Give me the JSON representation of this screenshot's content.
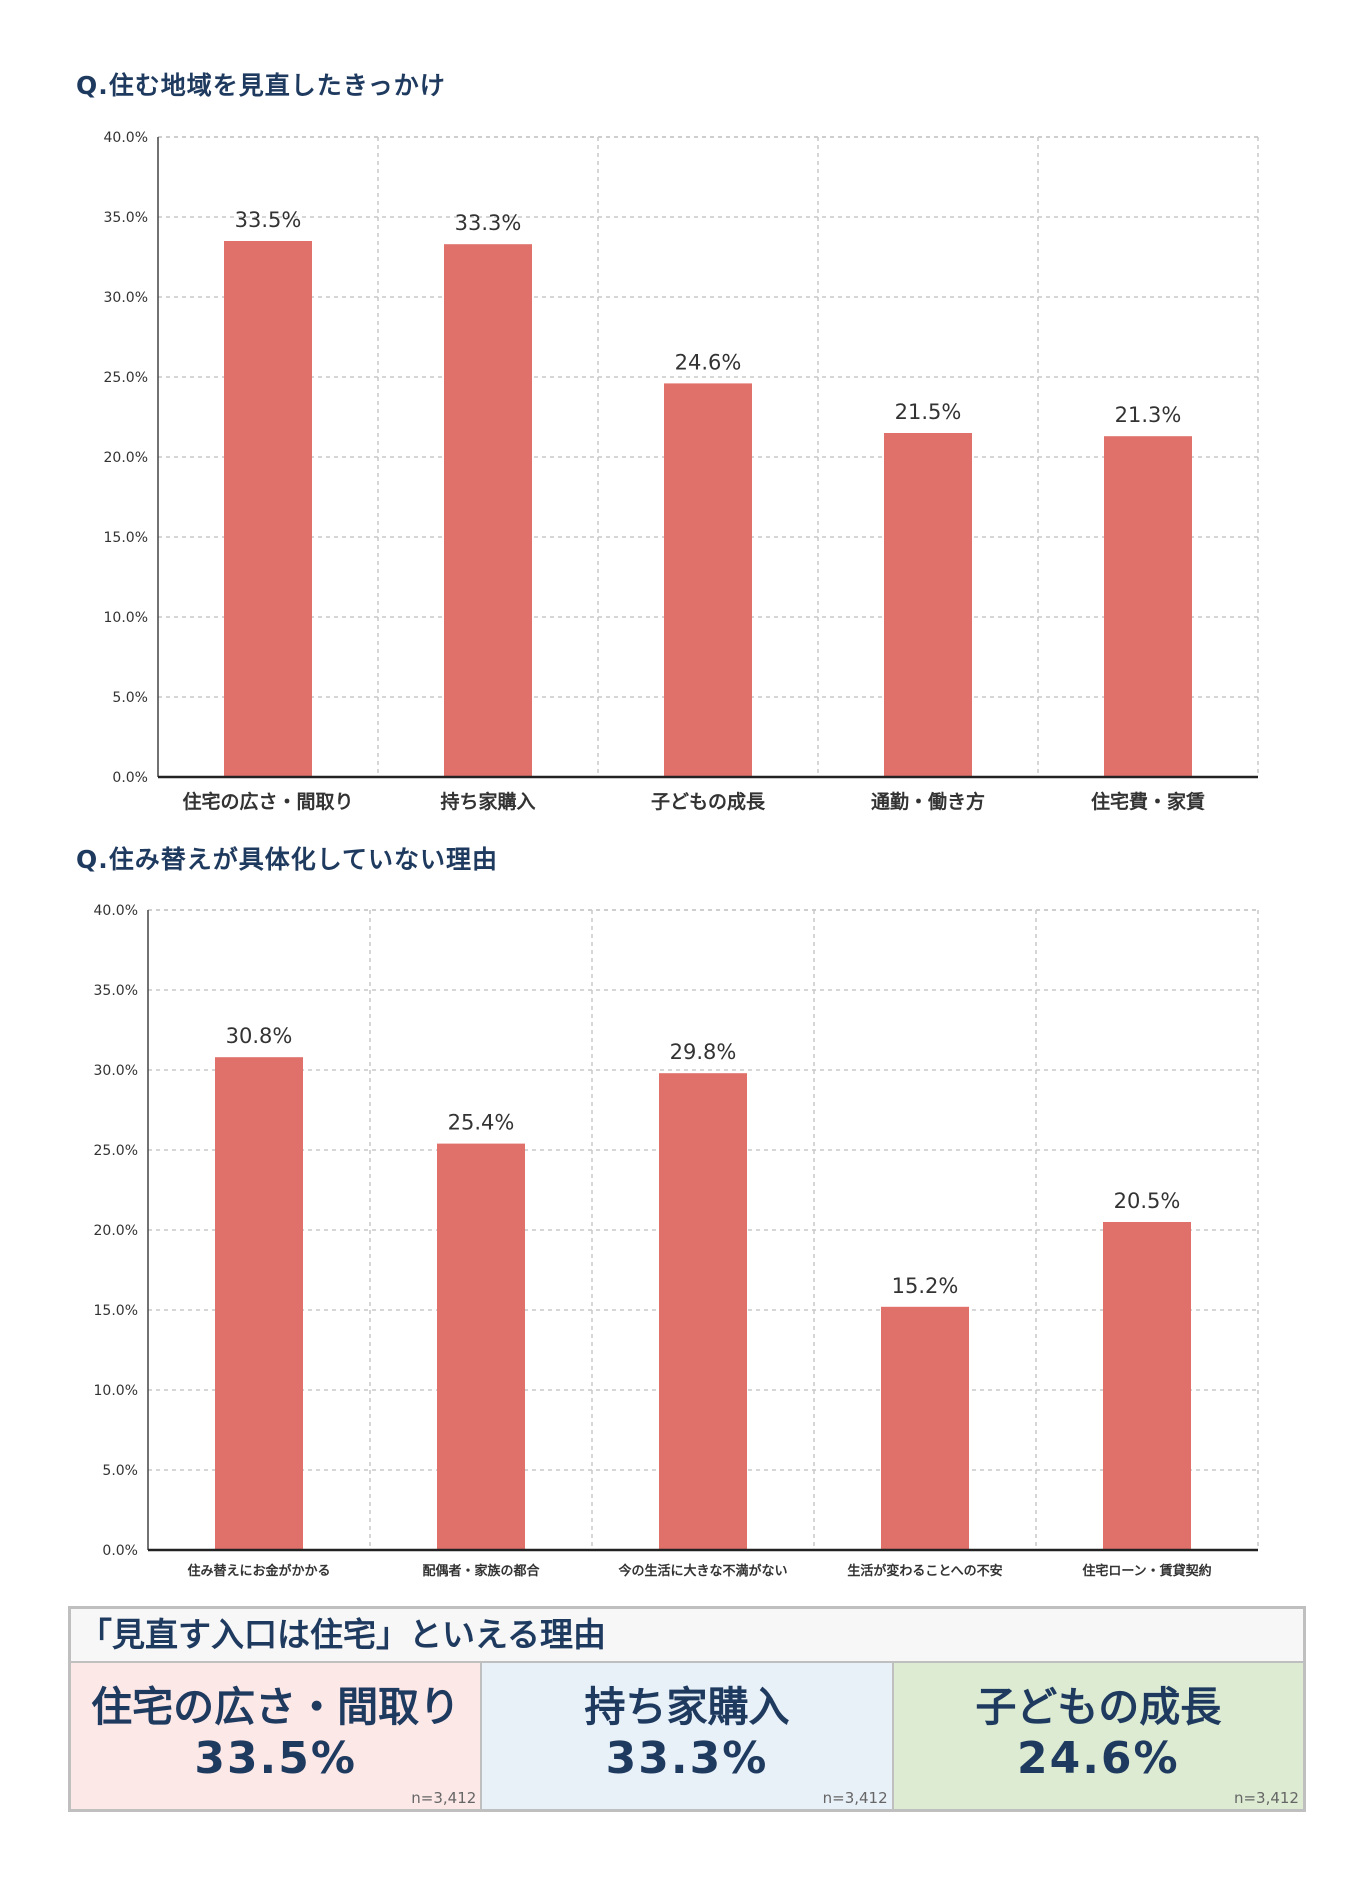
{
  "chart_data": [
    {
      "type": "bar",
      "title": "Q.住む地域を見直したきっかけ",
      "categories": [
        "住宅の広さ・間取り",
        "持ち家購入",
        "子どもの成長",
        "通勤・働き方",
        "住宅費・家賃"
      ],
      "values": [
        33.5,
        33.3,
        24.6,
        21.5,
        21.3
      ],
      "value_labels": [
        "33.5%",
        "33.3%",
        "24.6%",
        "21.5%",
        "21.3%"
      ],
      "yticks": [
        "0.0%",
        "5.0%",
        "10.0%",
        "15.0%",
        "20.0%",
        "25.0%",
        "30.0%",
        "35.0%",
        "40.0%"
      ],
      "ylim": [
        0,
        40
      ],
      "grid": true,
      "color": "#e0706a"
    },
    {
      "type": "bar",
      "title": "Q.住み替えが具体化していない理由",
      "categories": [
        "住み替えにお金がかかる",
        "配偶者・家族の都合",
        "今の生活に大きな不満がない",
        "生活が変わることへの不安",
        "住宅ローン・賃貸契約"
      ],
      "values": [
        30.8,
        25.4,
        29.8,
        15.2,
        20.5
      ],
      "value_labels": [
        "30.8%",
        "25.4%",
        "29.8%",
        "15.2%",
        "20.5%"
      ],
      "yticks": [
        "0.0%",
        "5.0%",
        "10.0%",
        "15.0%",
        "20.0%",
        "25.0%",
        "30.0%",
        "35.0%",
        "40.0%"
      ],
      "ylim": [
        0,
        40
      ],
      "grid": true,
      "color": "#e0706a"
    }
  ],
  "summary": {
    "heading": "「見直す入口は住宅」といえる理由",
    "items": [
      {
        "label": "住宅の広さ・間取り",
        "value": "33.5%",
        "n": "n=3,412",
        "bg": "#fde8e8"
      },
      {
        "label": "持ち家購入",
        "value": "33.3%",
        "n": "n=3,412",
        "bg": "#e8f0f8"
      },
      {
        "label": "子どもの成長",
        "value": "24.6%",
        "n": "n=3,412",
        "bg": "#dcebd2"
      }
    ]
  },
  "colors": {
    "title": "#1f3a5f",
    "bar": "#e0706a",
    "grid": "#c8c8c8"
  }
}
